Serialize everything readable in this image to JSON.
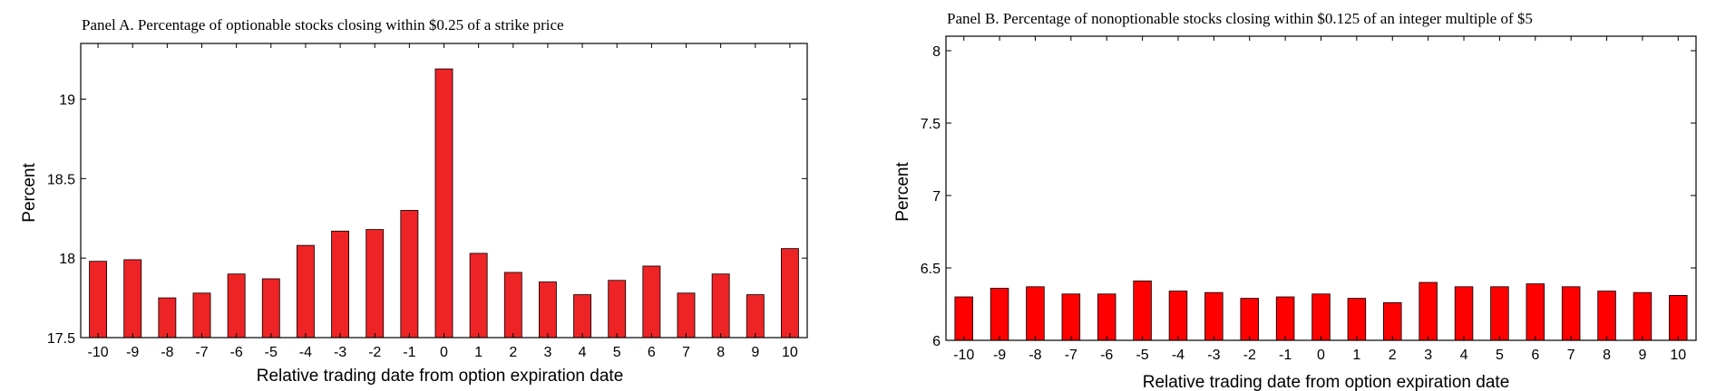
{
  "chart_data": [
    {
      "type": "bar",
      "title": "Panel A.  Percentage of optionable stocks closing within $0.25 of a strike price",
      "xlabel": "Relative trading date from option expiration date",
      "ylabel": "Percent",
      "ylim": [
        17.5,
        19.35
      ],
      "yticks": [
        17.5,
        18,
        18.5,
        19
      ],
      "ytick_labels": [
        "17.5",
        "18",
        "18.5",
        "19"
      ],
      "categories": [
        "-10",
        "-9",
        "-8",
        "-7",
        "-6",
        "-5",
        "-4",
        "-3",
        "-2",
        "-1",
        "0",
        "1",
        "2",
        "3",
        "4",
        "5",
        "6",
        "7",
        "8",
        "9",
        "10"
      ],
      "values": [
        17.98,
        17.99,
        17.75,
        17.78,
        17.9,
        17.87,
        18.08,
        18.17,
        18.18,
        18.3,
        19.19,
        18.03,
        17.91,
        17.85,
        17.77,
        17.86,
        17.95,
        17.78,
        17.9,
        17.77,
        18.06
      ],
      "bar_color": "#ee2325",
      "grid": false,
      "legend": null
    },
    {
      "type": "bar",
      "title": "Panel B.  Percentage of nonoptionable stocks closing within $0.125 of an integer multiple of $5",
      "xlabel": "Relative trading date from option expiration date",
      "ylabel": "Percent",
      "ylim": [
        6,
        8.1
      ],
      "yticks": [
        6,
        6.5,
        7,
        7.5,
        8
      ],
      "ytick_labels": [
        "6",
        "6.5",
        "7",
        "7.5",
        "8"
      ],
      "categories": [
        "-10",
        "-9",
        "-8",
        "-7",
        "-6",
        "-5",
        "-4",
        "-3",
        "-2",
        "-1",
        "0",
        "1",
        "2",
        "3",
        "4",
        "5",
        "6",
        "7",
        "8",
        "9",
        "10"
      ],
      "values": [
        6.3,
        6.36,
        6.37,
        6.32,
        6.32,
        6.41,
        6.34,
        6.33,
        6.29,
        6.3,
        6.32,
        6.29,
        6.26,
        6.4,
        6.37,
        6.37,
        6.39,
        6.37,
        6.34,
        6.33,
        6.31
      ],
      "bar_color": "#ff0000",
      "grid": false,
      "legend": null
    }
  ]
}
